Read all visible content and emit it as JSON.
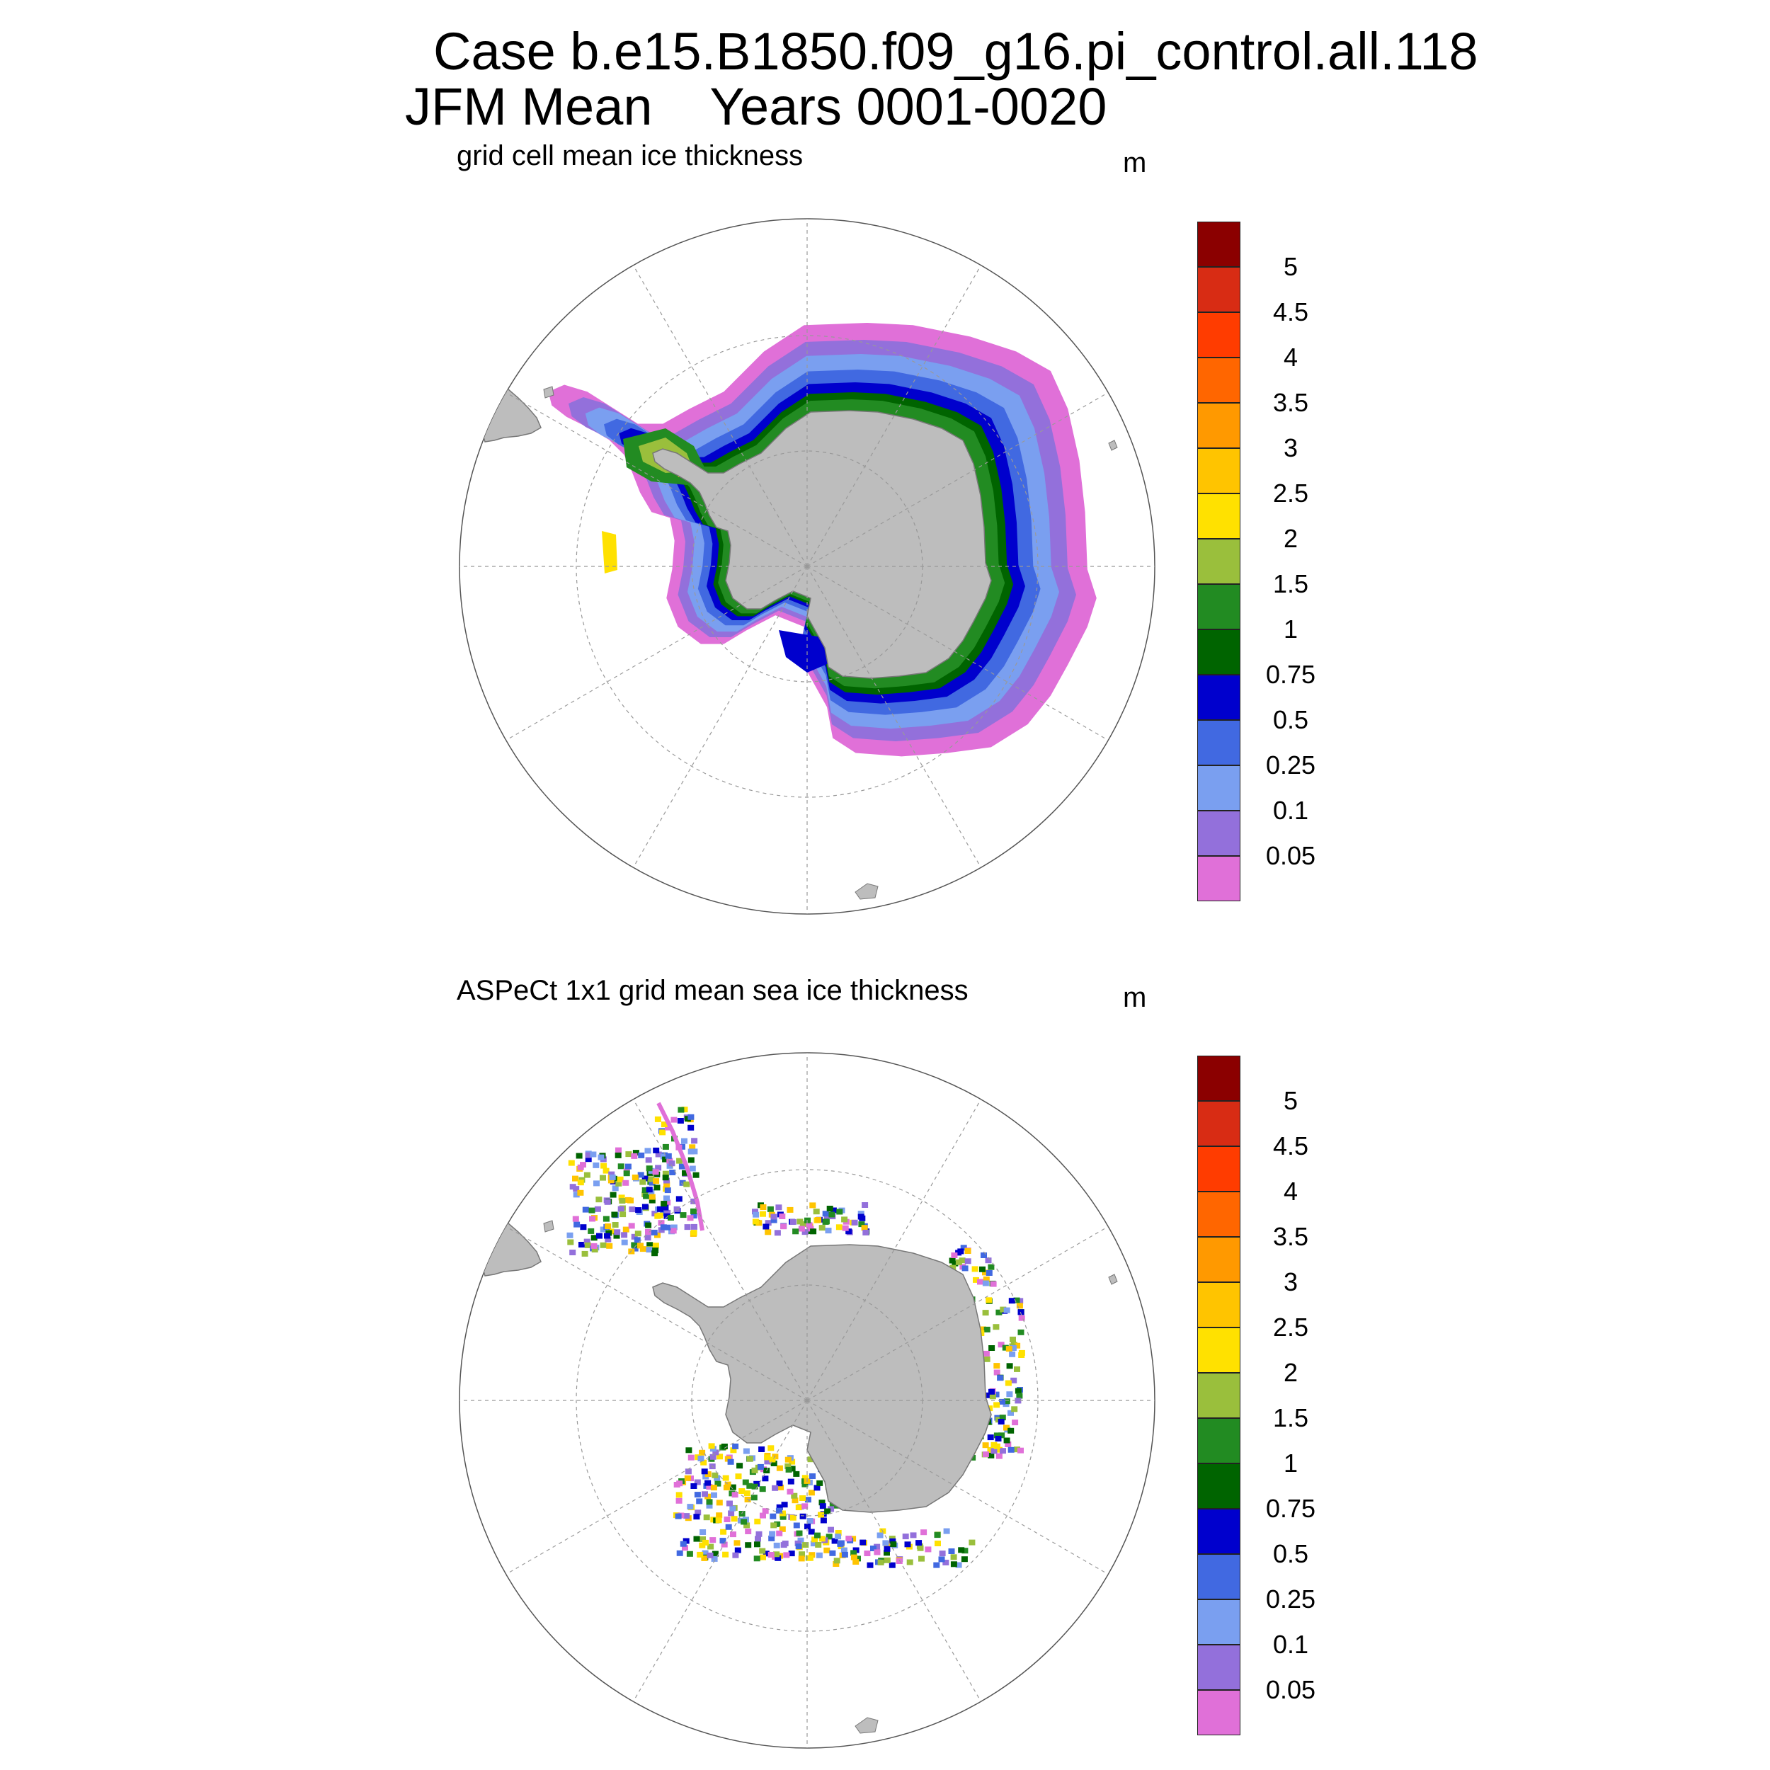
{
  "title": {
    "line1": "Case b.e15.B1850.f09_g16.pi_control.all.118",
    "line2": "JFM Mean    Years 0001-0020"
  },
  "panels": [
    {
      "title": "grid cell mean ice thickness",
      "units": "m"
    },
    {
      "title": "ASPeCt 1x1 grid mean sea ice thickness",
      "units": "m"
    }
  ],
  "colorbar": {
    "labels": [
      "5",
      "4.5",
      "4",
      "3.5",
      "3",
      "2.5",
      "2",
      "1.5",
      "1",
      "0.75",
      "0.5",
      "0.25",
      "0.1",
      "0.05"
    ],
    "colors": [
      "#8b0000",
      "#d82c14",
      "#ff3c00",
      "#ff6600",
      "#ff9900",
      "#ffc400",
      "#ffe100",
      "#9abf3c",
      "#228b22",
      "#006400",
      "#0000cd",
      "#4169e1",
      "#7a9ff0",
      "#9370db",
      "#e070d8"
    ]
  },
  "map_colors": {
    "land": "#bdbdbd",
    "coast": "#777777",
    "grid": "#999999",
    "ocean": "#ffffff"
  }
}
